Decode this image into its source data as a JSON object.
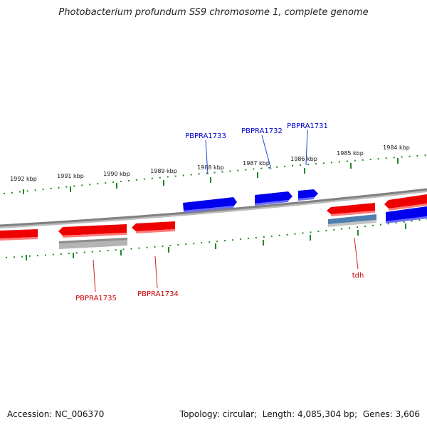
{
  "title": "Photobacterium profundum SS9 chromosome 1, complete genome",
  "footer": {
    "accession_label": "Accession:",
    "accession": "NC_006370",
    "topology_label": "Topology:",
    "topology": "circular",
    "length_label": "Length:",
    "length": "4,085,304 bp",
    "genes_label": "Genes:",
    "genes": "3,606"
  },
  "scale": {
    "upper_labels": [
      "1992 kbp",
      "1991 kbp",
      "1990 kbp",
      "1989 kbp",
      "1988 kbp",
      "1987 kbp",
      "1986 kbp",
      "1985 kbp",
      "1984 kbp"
    ]
  },
  "gene_labels": {
    "forward": [
      "PBPRA1733",
      "PBPRA1732",
      "PBPRA1731"
    ],
    "reverse": [
      "PBPRA1735",
      "PBPRA1734",
      "tdh"
    ]
  },
  "colors": {
    "forward": "#0000ee",
    "reverse": "#ee0000",
    "backbone": "#808080",
    "ticks": "#228822",
    "label_forward": "#0000cc",
    "label_reverse": "#cc0000",
    "other": "#aaaaaa",
    "rna": "#4f7fb0"
  }
}
